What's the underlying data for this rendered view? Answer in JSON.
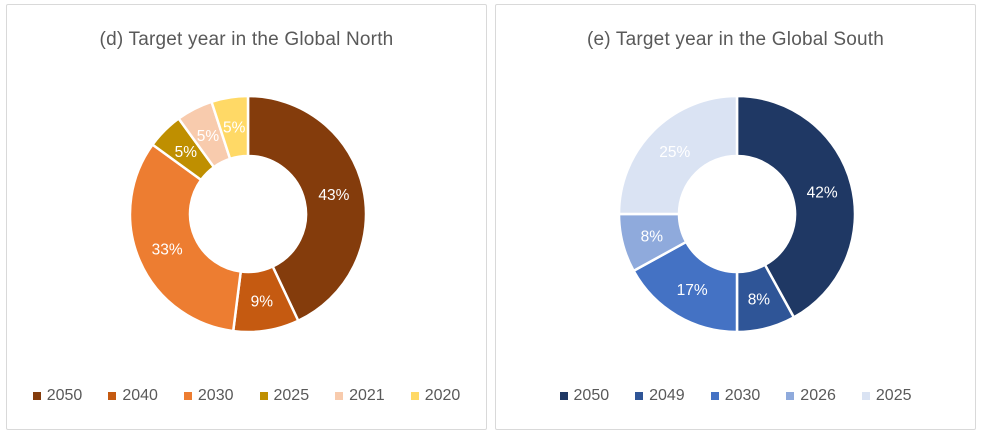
{
  "figure": {
    "background_color": "#ffffff",
    "panel_border_color": "#d9d9d9",
    "title_color": "#595959",
    "legend_text_color": "#595959",
    "slice_label_color": "#ffffff"
  },
  "chart_data": [
    {
      "type": "pie",
      "subtype": "donut",
      "title": "(d) Target year in the Global North",
      "categories": [
        "2050",
        "2040",
        "2030",
        "2025",
        "2021",
        "2020"
      ],
      "values": [
        43,
        9,
        33,
        5,
        5,
        5
      ],
      "labels": [
        "43%",
        "9%",
        "33%",
        "5%",
        "5%",
        "5%"
      ],
      "colors": [
        "#843C0C",
        "#C55A11",
        "#ED7D31",
        "#BF8F00",
        "#F8CBAD",
        "#FFD966"
      ],
      "start_angle_deg": 0,
      "direction": "clockwise",
      "legend_position": "bottom",
      "data_labels": "percent-inside-white"
    },
    {
      "type": "pie",
      "subtype": "donut",
      "title": "(e) Target year in the Global South",
      "categories": [
        "2050",
        "2049",
        "2030",
        "2026",
        "2025"
      ],
      "values": [
        42,
        8,
        17,
        8,
        25
      ],
      "labels": [
        "42%",
        "8%",
        "17%",
        "8%",
        "25%"
      ],
      "colors": [
        "#1F3864",
        "#2F5597",
        "#4472C4",
        "#8FAADC",
        "#DAE3F3"
      ],
      "start_angle_deg": 0,
      "direction": "clockwise",
      "legend_position": "bottom",
      "data_labels": "percent-inside-white"
    }
  ]
}
